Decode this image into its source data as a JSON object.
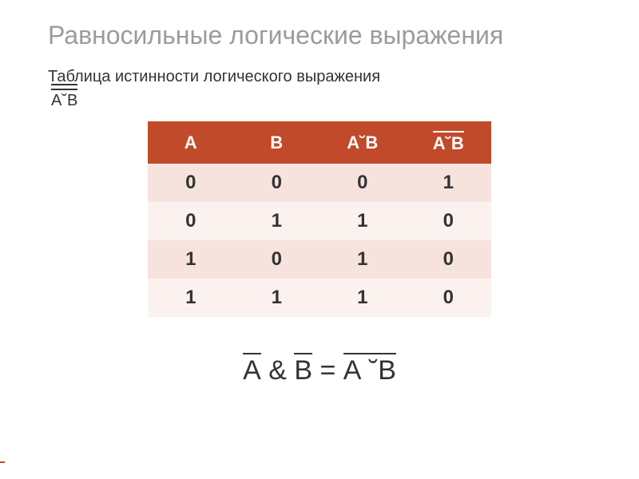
{
  "title": "Равносильные логические выражения",
  "subtitle_part1": "Таблица истинности логического выражения ",
  "subtitle_expr_pre": "А",
  "subtitle_expr_op": "˘",
  "subtitle_expr_post": "В",
  "table": {
    "header_bg": "#c14a2b",
    "row_odd_bg": "#f6e3dd",
    "row_even_bg": "#fbf2ef",
    "columns": [
      "А",
      "В",
      "А˘В",
      "А˘В"
    ],
    "col4_overline": true,
    "rows": [
      [
        "0",
        "0",
        "0",
        "1"
      ],
      [
        "0",
        "1",
        "1",
        "0"
      ],
      [
        "1",
        "0",
        "1",
        "0"
      ],
      [
        "1",
        "1",
        "1",
        "0"
      ]
    ]
  },
  "equation": {
    "lhs_a": "А",
    "amp": " & ",
    "lhs_b": "В",
    "eq": "  =  ",
    "rhs": "А ˘В"
  },
  "footer_line": {
    "width": 6,
    "height": 2
  }
}
